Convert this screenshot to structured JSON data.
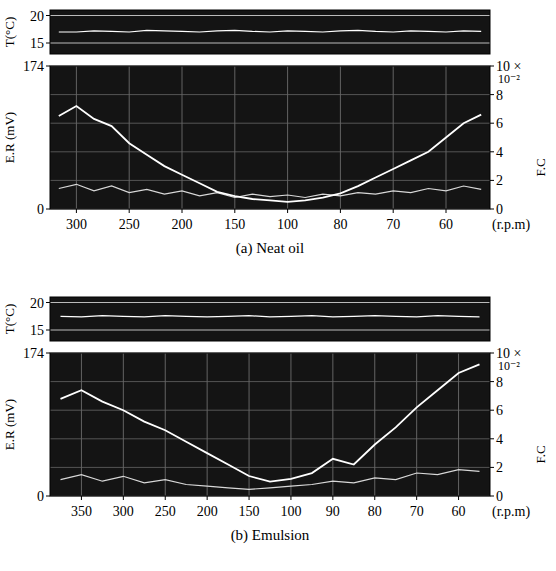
{
  "chart_data": [
    {
      "type": "line",
      "title": "(a) Neat oil",
      "x_label": "(r.p.m)",
      "y_label": "E.R (mV)",
      "y2_label": "F.C",
      "y3_label": "T(°C)",
      "annotations": [
        "10⁻²"
      ],
      "categories": [
        null,
        "300",
        null,
        null,
        "250",
        null,
        null,
        "200",
        null,
        null,
        "150",
        null,
        null,
        "100",
        null,
        null,
        "80",
        null,
        null,
        "70",
        null,
        null,
        "60",
        null,
        null
      ],
      "ylim": [
        0,
        174
      ],
      "yticks": [
        0,
        174
      ],
      "y2lim": [
        0,
        10
      ],
      "y2ticks": [
        0,
        2,
        4,
        6,
        8,
        {
          "value": 10,
          "label": "10 ×"
        }
      ],
      "y3lim": [
        13,
        21
      ],
      "y3ticks": [
        15,
        20
      ],
      "grid": true,
      "series": [
        {
          "axis": "y3",
          "color": "#ffffff",
          "values": [
            17,
            17,
            17.2,
            17.1,
            17,
            17.3,
            17.2,
            17.1,
            17,
            17.2,
            17.3,
            17.1,
            17,
            17.2,
            17.1,
            17,
            17.2,
            17.3,
            17.1,
            17,
            17.2,
            17.1,
            17,
            17.2,
            17.1
          ]
        },
        {
          "color": "#d8d8d8",
          "values": [
            25,
            30,
            22,
            28,
            20,
            24,
            18,
            22,
            16,
            20,
            14,
            18,
            15,
            17,
            14,
            18,
            16,
            20,
            18,
            22,
            20,
            25,
            22,
            28,
            24
          ]
        },
        {
          "axis": "y2",
          "color": "#ffffff",
          "values": [
            6.5,
            7.2,
            6.3,
            5.8,
            4.6,
            3.8,
            3.0,
            2.4,
            1.8,
            1.2,
            0.9,
            0.7,
            0.6,
            0.5,
            0.6,
            0.8,
            1.1,
            1.6,
            2.2,
            2.8,
            3.4,
            4.0,
            5.0,
            6.0,
            6.6
          ]
        }
      ]
    },
    {
      "type": "line",
      "title": "(b) Emulsion",
      "x_label": "(r.p.m)",
      "y_label": "E.R (mV)",
      "y2_label": "F.C",
      "y3_label": "T(°C)",
      "annotations": [
        "10⁻²"
      ],
      "categories": [
        null,
        "350",
        null,
        "300",
        null,
        "250",
        null,
        "200",
        null,
        "150",
        null,
        "100",
        null,
        "90",
        null,
        "80",
        null,
        "70",
        null,
        "60",
        null
      ],
      "ylim": [
        0,
        174
      ],
      "yticks": [
        0,
        174
      ],
      "y2lim": [
        0,
        10
      ],
      "y2ticks": [
        0,
        2,
        4,
        6,
        8,
        {
          "value": 10,
          "label": "10 ×"
        }
      ],
      "y3lim": [
        13,
        21
      ],
      "y3ticks": [
        15,
        20
      ],
      "grid": true,
      "series": [
        {
          "axis": "y3",
          "color": "#ffffff",
          "values": [
            17.5,
            17.4,
            17.6,
            17.5,
            17.4,
            17.6,
            17.5,
            17.4,
            17.5,
            17.6,
            17.4,
            17.5,
            17.6,
            17.4,
            17.5,
            17.6,
            17.5,
            17.4,
            17.6,
            17.5,
            17.4
          ]
        },
        {
          "color": "#d8d8d8",
          "values": [
            20,
            26,
            18,
            24,
            16,
            20,
            14,
            12,
            10,
            8,
            10,
            12,
            14,
            18,
            16,
            22,
            20,
            28,
            26,
            32,
            30
          ]
        },
        {
          "axis": "y2",
          "color": "#ffffff",
          "values": [
            6.8,
            7.4,
            6.6,
            6.0,
            5.2,
            4.6,
            3.8,
            3.0,
            2.2,
            1.4,
            1.0,
            1.2,
            1.6,
            2.6,
            2.2,
            3.6,
            4.8,
            6.2,
            7.4,
            8.6,
            9.2
          ]
        }
      ]
    }
  ]
}
